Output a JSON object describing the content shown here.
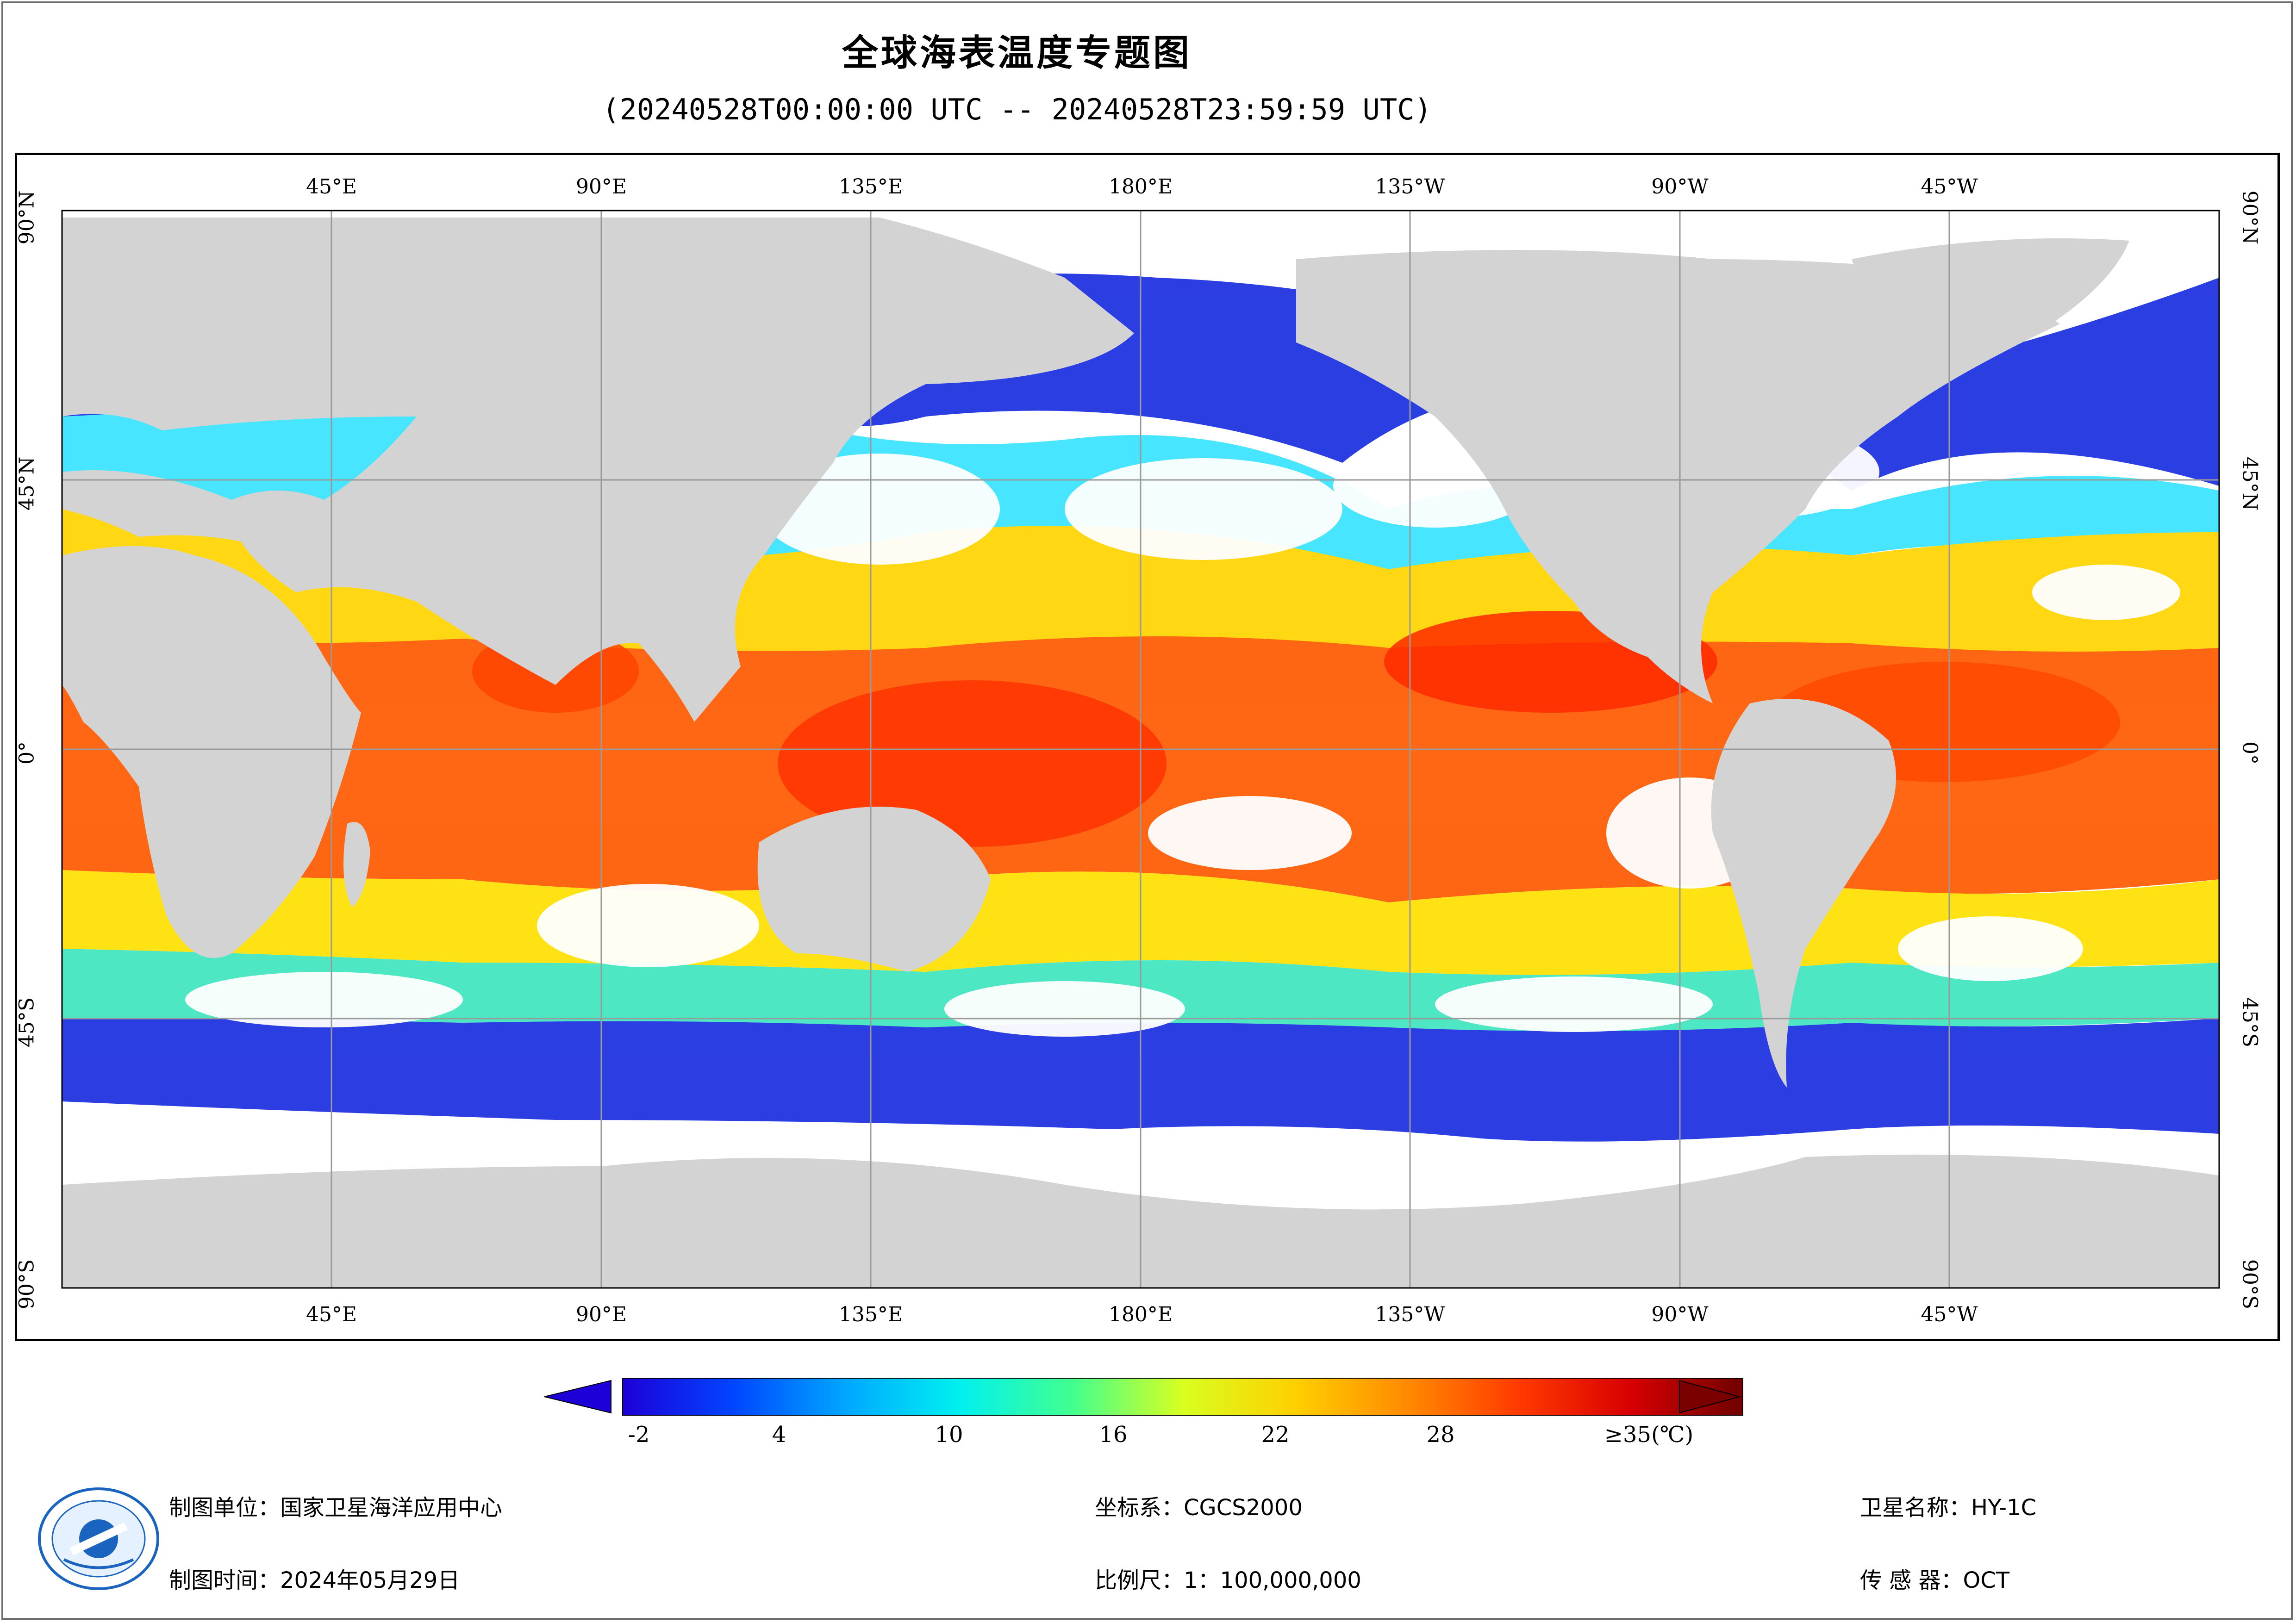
{
  "header": {
    "title": "全球海表温度专题图",
    "subtitle": "(20240528T00:00:00 UTC -- 20240528T23:59:59 UTC)"
  },
  "map": {
    "top_lon_labels": [
      "45°E",
      "90°E",
      "135°E",
      "180°E",
      "135°W",
      "90°W",
      "45°W"
    ],
    "bottom_lon_labels": [
      "45°E",
      "90°E",
      "135°E",
      "180°E",
      "135°W",
      "90°W",
      "45°W"
    ],
    "lat_labels": [
      "90°N",
      "45°N",
      "0°",
      "45°S",
      "90°S"
    ],
    "colors": {
      "land": "#d3d3d3",
      "no_data": "#ffffff",
      "grid": "#9a9a9a"
    }
  },
  "legend": {
    "tick_labels": [
      "-2",
      "4",
      "10",
      "16",
      "22",
      "28",
      "≥35(℃)"
    ],
    "range": [
      -2,
      35
    ],
    "colors": [
      "#1d00d8",
      "#0046ff",
      "#00a8ff",
      "#00f0f0",
      "#40ff90",
      "#d8ff20",
      "#ffd000",
      "#ff8a00",
      "#ff3a00",
      "#d80000",
      "#700000"
    ]
  },
  "footer": {
    "org": "制图单位：国家卫星海洋应用中心",
    "date": "制图时间：2024年05月29日",
    "crs": "坐标系：CGCS2000",
    "scale": "比例尺：1：100,000,000",
    "satellite": "卫星名称：HY-1C",
    "sensor": "传 感 器：OCT"
  }
}
